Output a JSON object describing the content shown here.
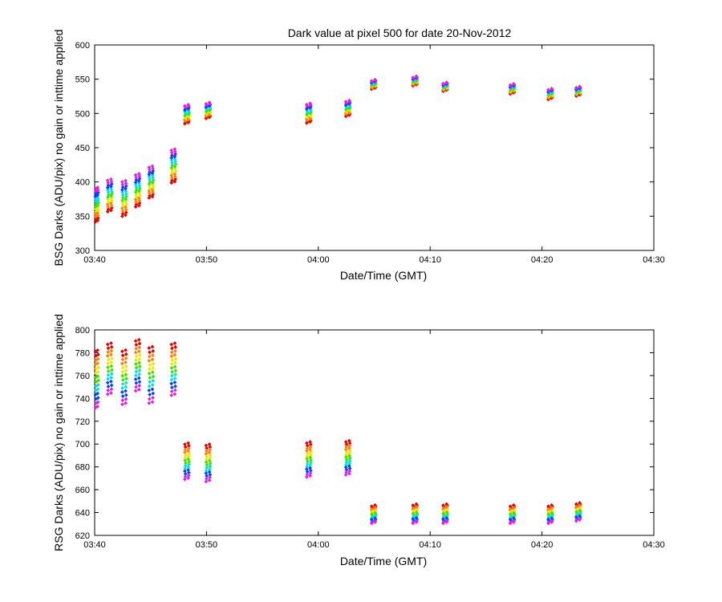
{
  "chart_data": [
    {
      "type": "scatter",
      "title": "Dark value at pixel 500 for date 20-Nov-2012",
      "xlabel": "Date/Time (GMT)",
      "ylabel": "BSG Darks (ADU/pix) no gain or inttime applied",
      "xlim": [
        0,
        50
      ],
      "ylim": [
        300,
        600
      ],
      "x_tick_values": [
        0,
        10,
        20,
        30,
        40,
        50
      ],
      "x_tick_labels": [
        "03:40",
        "03:50",
        "04:00",
        "04:10",
        "04:20",
        "04:30"
      ],
      "y_ticks": [
        300,
        350,
        400,
        450,
        500,
        550,
        600
      ],
      "colors": [
        "#e00000",
        "#ff8000",
        "#e8e800",
        "#40e000",
        "#00e0e0",
        "#0040ff",
        "#e020e0"
      ],
      "x_unit": "minutes after 03:40 GMT",
      "groups": [
        {
          "x": [
            0.1,
            0.3
          ],
          "min": 340,
          "max": 392
        },
        {
          "x": [
            1.2,
            1.5
          ],
          "min": 355,
          "max": 404
        },
        {
          "x": [
            2.5,
            2.8
          ],
          "min": 348,
          "max": 402
        },
        {
          "x": [
            3.7,
            4.0
          ],
          "min": 362,
          "max": 412
        },
        {
          "x": [
            4.9,
            5.2
          ],
          "min": 375,
          "max": 423
        },
        {
          "x": [
            6.9,
            7.2
          ],
          "min": 397,
          "max": 448
        },
        {
          "x": [
            8.1,
            8.4
          ],
          "min": 484,
          "max": 512
        },
        {
          "x": [
            10.0,
            10.3
          ],
          "min": 492,
          "max": 515
        },
        {
          "x": [
            19.0,
            19.3
          ],
          "min": 485,
          "max": 514
        },
        {
          "x": [
            22.5,
            22.8
          ],
          "min": 495,
          "max": 518
        },
        {
          "x": [
            24.8,
            25.1
          ],
          "min": 535,
          "max": 548
        },
        {
          "x": [
            28.5,
            28.8
          ],
          "min": 540,
          "max": 553
        },
        {
          "x": [
            31.2,
            31.5
          ],
          "min": 532,
          "max": 544
        },
        {
          "x": [
            37.2,
            37.5
          ],
          "min": 528,
          "max": 542
        },
        {
          "x": [
            40.6,
            40.9
          ],
          "min": 520,
          "max": 535
        },
        {
          "x": [
            43.1,
            43.4
          ],
          "min": 525,
          "max": 538
        }
      ]
    },
    {
      "type": "scatter",
      "title": "",
      "xlabel": "Date/Time (GMT)",
      "ylabel": "RSG Darks (ADU/pix) no gain or inttime applied",
      "xlim": [
        0,
        50
      ],
      "ylim": [
        620,
        800
      ],
      "x_tick_values": [
        0,
        10,
        20,
        30,
        40,
        50
      ],
      "x_tick_labels": [
        "03:40",
        "03:50",
        "04:00",
        "04:10",
        "04:20",
        "04:30"
      ],
      "y_ticks": [
        620,
        640,
        660,
        680,
        700,
        720,
        740,
        760,
        780,
        800
      ],
      "colors": [
        "#e00000",
        "#ff8000",
        "#e8e800",
        "#40e000",
        "#00e0e0",
        "#0040ff",
        "#e020e0"
      ],
      "x_unit": "minutes after 03:40 GMT",
      "groups": [
        {
          "x": [
            0.1,
            0.3
          ],
          "max": 783,
          "min": 730
        },
        {
          "x": [
            1.2,
            1.5
          ],
          "max": 789,
          "min": 742
        },
        {
          "x": [
            2.5,
            2.8
          ],
          "max": 783,
          "min": 733
        },
        {
          "x": [
            3.7,
            4.0
          ],
          "max": 792,
          "min": 745
        },
        {
          "x": [
            4.9,
            5.2
          ],
          "max": 786,
          "min": 734
        },
        {
          "x": [
            6.9,
            7.2
          ],
          "max": 789,
          "min": 741
        },
        {
          "x": [
            8.1,
            8.4
          ],
          "max": 701,
          "min": 668
        },
        {
          "x": [
            10.0,
            10.3
          ],
          "max": 700,
          "min": 666
        },
        {
          "x": [
            19.0,
            19.3
          ],
          "max": 702,
          "min": 670
        },
        {
          "x": [
            22.5,
            22.8
          ],
          "max": 703,
          "min": 672
        },
        {
          "x": [
            24.8,
            25.1
          ],
          "max": 646,
          "min": 630
        },
        {
          "x": [
            28.5,
            28.8
          ],
          "max": 647,
          "min": 630
        },
        {
          "x": [
            31.2,
            31.5
          ],
          "max": 647,
          "min": 630
        },
        {
          "x": [
            37.2,
            37.5
          ],
          "max": 646,
          "min": 630
        },
        {
          "x": [
            40.6,
            40.9
          ],
          "max": 646,
          "min": 630
        },
        {
          "x": [
            43.1,
            43.4
          ],
          "max": 648,
          "min": 632
        }
      ]
    }
  ]
}
